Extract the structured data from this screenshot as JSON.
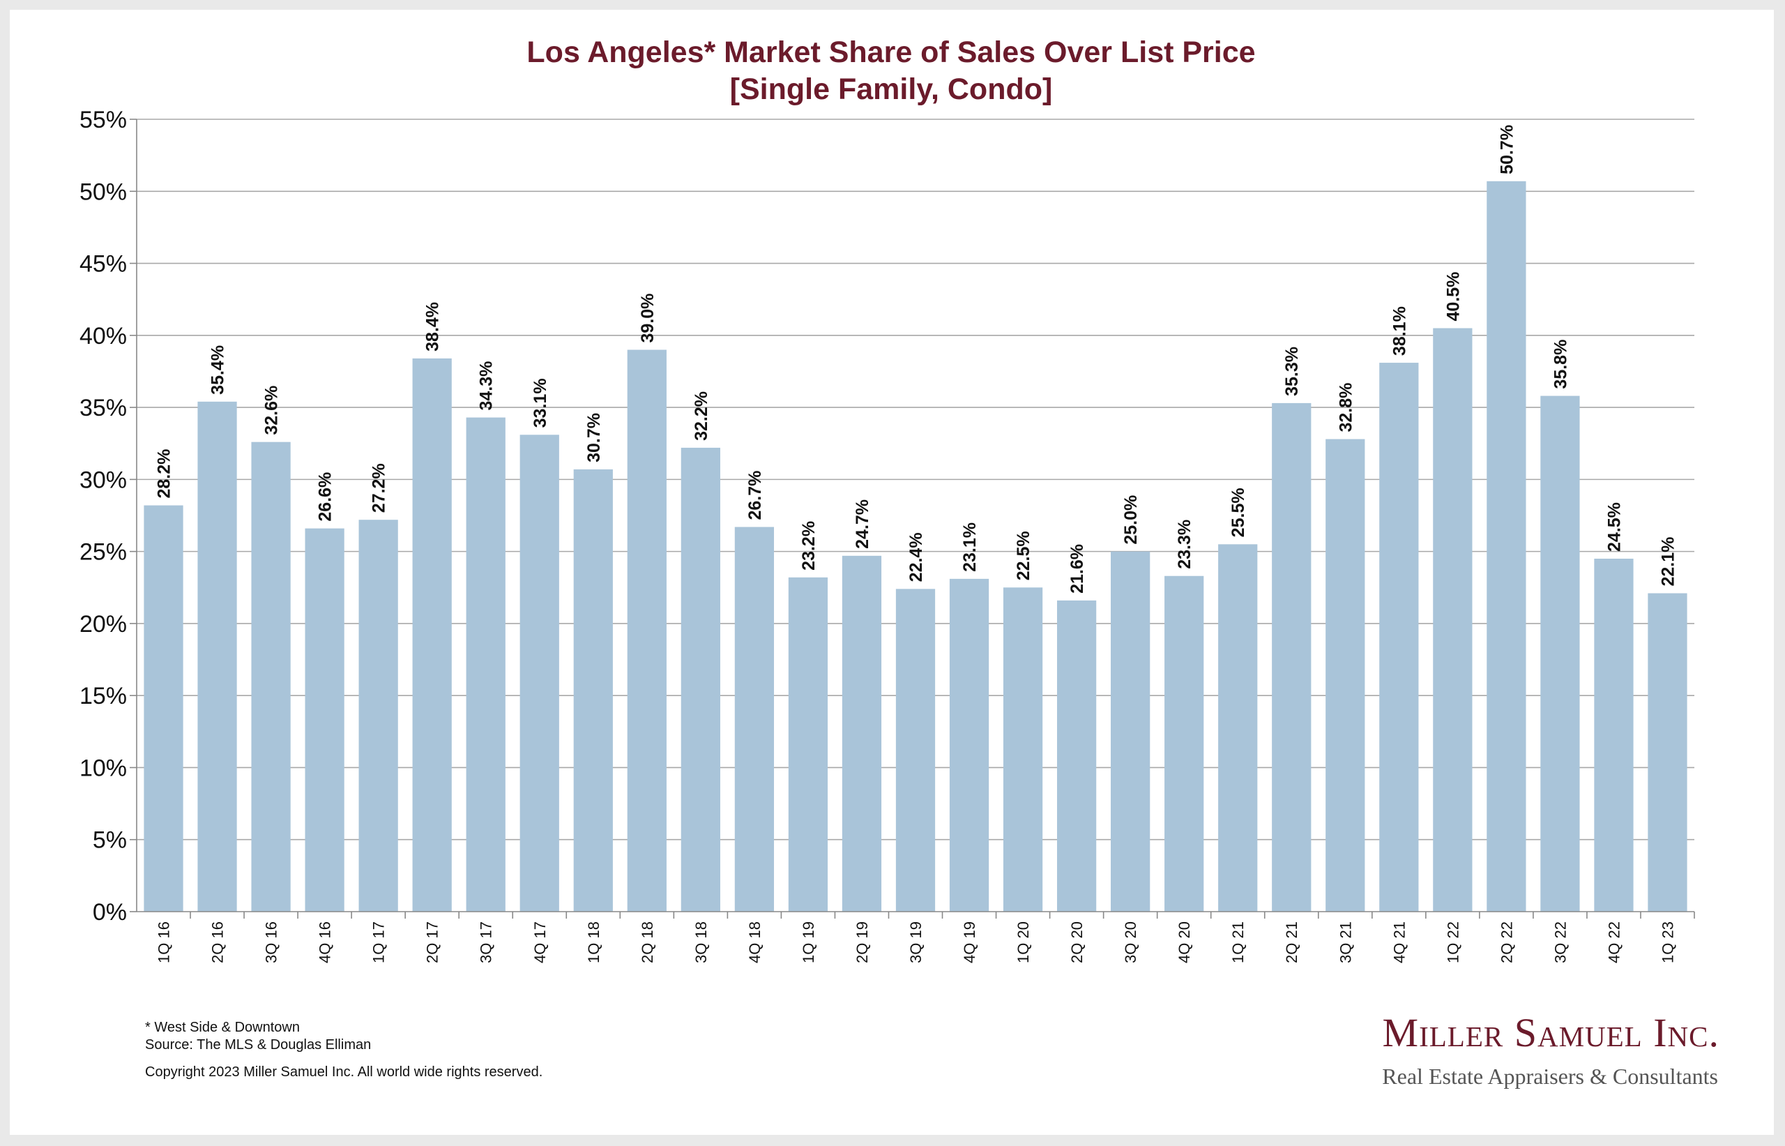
{
  "chart_data": {
    "type": "bar",
    "title_lines": [
      "Los Angeles* Market Share of Sales Over List Price",
      "[Single Family, Condo]"
    ],
    "xlabel": "",
    "ylabel": "",
    "ylim": [
      0,
      55
    ],
    "y_ticks": [
      "0%",
      "5%",
      "10%",
      "15%",
      "20%",
      "25%",
      "30%",
      "35%",
      "40%",
      "45%",
      "50%",
      "55%"
    ],
    "grid": true,
    "bar_color": "#a9c4d9",
    "categories": [
      "1Q 16",
      "2Q 16",
      "3Q 16",
      "4Q 16",
      "1Q 17",
      "2Q 17",
      "3Q 17",
      "4Q 17",
      "1Q 18",
      "2Q 18",
      "3Q 18",
      "4Q 18",
      "1Q 19",
      "2Q 19",
      "3Q 19",
      "4Q 19",
      "1Q 20",
      "2Q 20",
      "3Q 20",
      "4Q 20",
      "1Q 21",
      "2Q 21",
      "3Q 21",
      "4Q 21",
      "1Q 22",
      "2Q 22",
      "3Q 22",
      "4Q 22",
      "1Q 23"
    ],
    "values": [
      28.2,
      35.4,
      32.6,
      26.6,
      27.2,
      38.4,
      34.3,
      33.1,
      30.7,
      39.0,
      32.2,
      26.7,
      23.2,
      24.7,
      22.4,
      23.1,
      22.5,
      21.6,
      25.0,
      23.3,
      25.5,
      35.3,
      32.8,
      38.1,
      40.5,
      50.7,
      35.8,
      24.5,
      22.1
    ],
    "value_labels": [
      "28.2%",
      "35.4%",
      "32.6%",
      "26.6%",
      "27.2%",
      "38.4%",
      "34.3%",
      "33.1%",
      "30.7%",
      "39.0%",
      "32.2%",
      "26.7%",
      "23.2%",
      "24.7%",
      "22.4%",
      "23.1%",
      "22.5%",
      "21.6%",
      "25.0%",
      "23.3%",
      "25.5%",
      "35.3%",
      "32.8%",
      "38.1%",
      "40.5%",
      "50.7%",
      "35.8%",
      "24.5%",
      "22.1%"
    ]
  },
  "footnotes": {
    "note": "* West Side & Downtown",
    "source": "Source: The MLS & Douglas Elliman",
    "copyright": "Copyright 2023 Miller Samuel Inc.  All world wide rights reserved."
  },
  "logo": {
    "name": "Miller Samuel Inc.",
    "tagline": "Real Estate Appraisers & Consultants"
  }
}
